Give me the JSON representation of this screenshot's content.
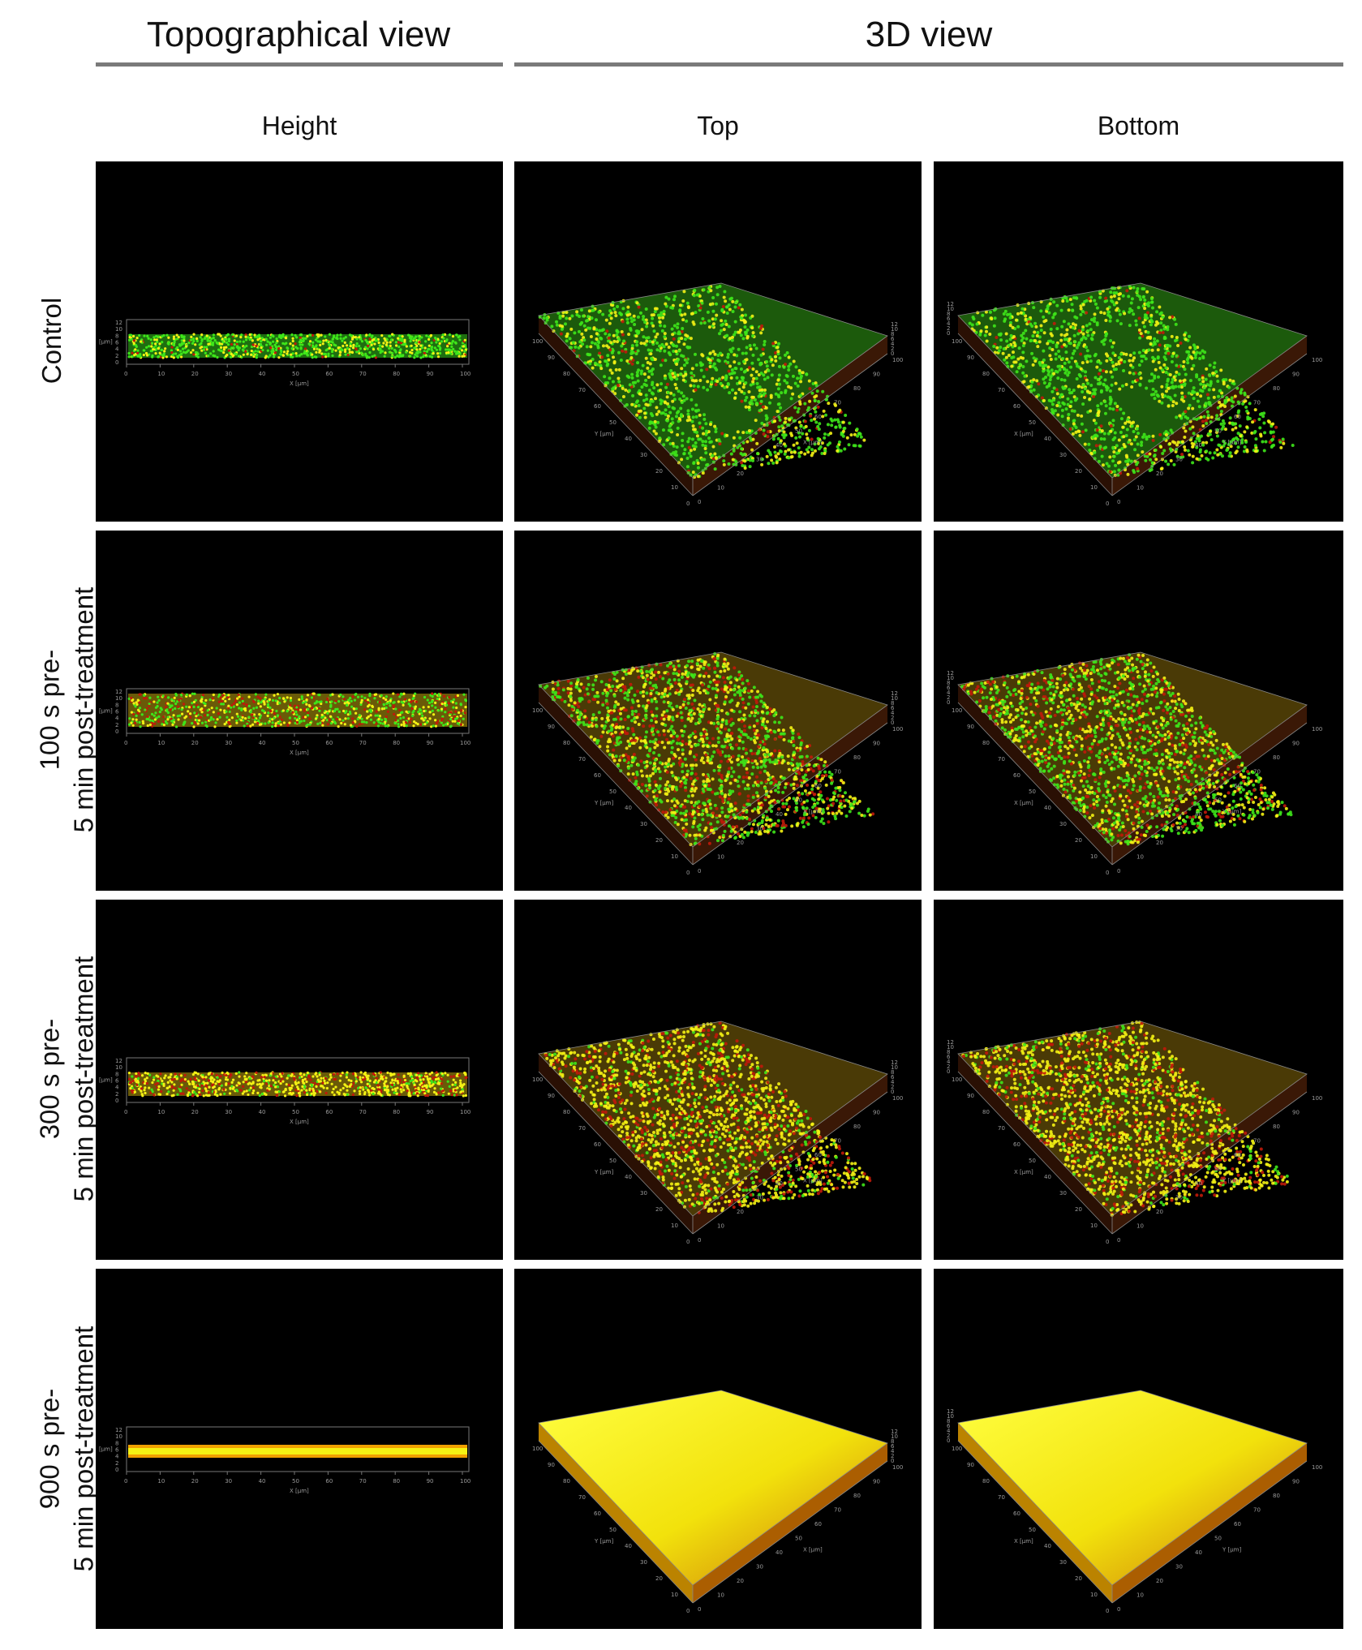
{
  "headers": {
    "topographical": "Topographical view",
    "view3d": "3D view"
  },
  "columns": [
    "Height",
    "Top",
    "Bottom"
  ],
  "rows": [
    {
      "label_line1": "Control",
      "label_line2": ""
    },
    {
      "label_line1": "100 s pre-",
      "label_line2": "5 min post-treatment"
    },
    {
      "label_line1": "300 s pre-",
      "label_line2": "5 min post-treatment"
    },
    {
      "label_line1": "900 s pre-",
      "label_line2": "5 min post-treatment"
    }
  ],
  "axes": {
    "x_label": "X [µm]",
    "y_label": "Y [µm]",
    "z_label": "[µm]",
    "x_ticks": [
      "0",
      "10",
      "20",
      "30",
      "40",
      "50",
      "60",
      "70",
      "80",
      "90",
      "100"
    ],
    "z_ticks": [
      "12",
      "10",
      "8",
      "6",
      "4",
      "2",
      "0"
    ]
  },
  "colors": {
    "green": "#3ee61a",
    "yellow": "#f4f214",
    "red": "#c01a0a",
    "panel_bg": "#000000",
    "header_rule": "#7a7a7a"
  },
  "panels": {
    "tone": [
      "green",
      "mixed",
      "yellow-red",
      "yellow-solid"
    ]
  }
}
